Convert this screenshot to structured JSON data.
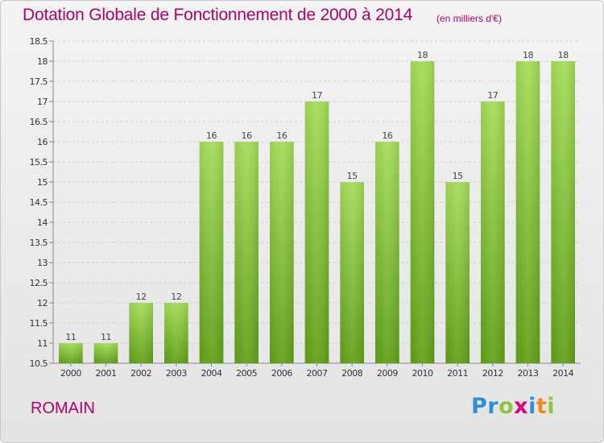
{
  "header": {
    "title": "Dotation Globale de Fonctionnement de 2000 à 2014",
    "unit_note": "(en milliers d'€)"
  },
  "footer": {
    "commune": "ROMAIN",
    "logo_parts": [
      "Pr",
      "o",
      "x",
      "i",
      "t",
      "i"
    ]
  },
  "colors": {
    "title": "#b5006a",
    "bar_light": "#a6dd5a",
    "bar_dark": "#62a11a"
  },
  "chart_data": {
    "type": "bar",
    "title": "Dotation Globale de Fonctionnement de 2000 à 2014",
    "categories": [
      "2000",
      "2001",
      "2002",
      "2003",
      "2004",
      "2005",
      "2006",
      "2007",
      "2008",
      "2009",
      "2010",
      "2011",
      "2012",
      "2013",
      "2014"
    ],
    "values": [
      11,
      11,
      12,
      12,
      16,
      16,
      16,
      17,
      15,
      16,
      18,
      15,
      17,
      18,
      18
    ],
    "xlabel": "",
    "ylabel": "",
    "ylim": [
      10.5,
      18.5
    ],
    "yticks": [
      "10.5",
      "11",
      "11.5",
      "12",
      "12.5",
      "13",
      "13.5",
      "14",
      "14.5",
      "15",
      "15.5",
      "16",
      "16.5",
      "17",
      "17.5",
      "18",
      "18.5"
    ],
    "grid": "horizontal"
  }
}
